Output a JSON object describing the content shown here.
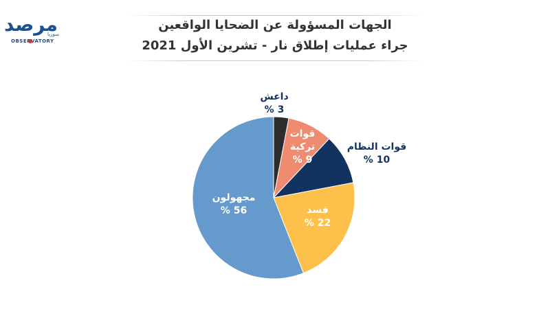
{
  "title_lines": [
    "الجهات المسؤولة عن الضحايا الواقعين",
    "جراء عمليات إطلاق نار - تشرين الأول 2021"
  ],
  "logo": {
    "word": "مرصد",
    "arabic_small": "سوريا",
    "latin": "OBSERVATORY"
  },
  "colors": {
    "title": "#333333",
    "logo": "#1d4f91",
    "logo_dot": "#d9302c"
  },
  "chart_data": {
    "type": "pie",
    "start_angle_deg": 0,
    "direction": "clockwise",
    "slices": [
      {
        "label": "داعش",
        "value": 3,
        "value_text": "3 %",
        "color": "#2d2d2d"
      },
      {
        "label_lines": [
          "قوات",
          "تركية"
        ],
        "value": 9,
        "value_text": "9 %",
        "color": "#ee8b70"
      },
      {
        "label": "قوات النظام",
        "value": 10,
        "value_text": "10 %",
        "color": "#12335f"
      },
      {
        "label": "قسد",
        "value": 22,
        "value_text": "22 %",
        "color": "#fdc04b"
      },
      {
        "label": "مجهولون",
        "value": 56,
        "value_text": "56 %",
        "color": "#6699cc"
      }
    ]
  }
}
